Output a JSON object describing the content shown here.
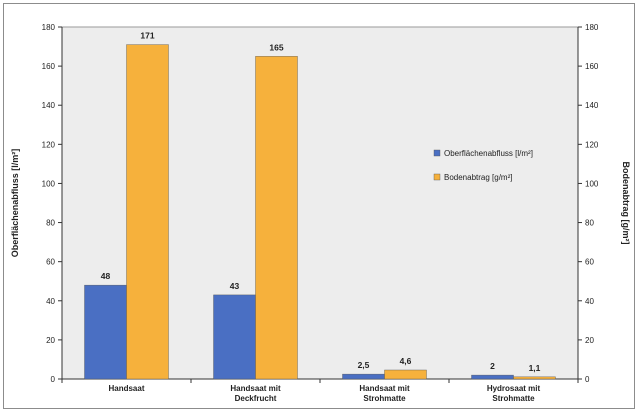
{
  "chart_data": {
    "type": "bar",
    "categories": [
      [
        "Handsaat"
      ],
      [
        "Handsaat mit",
        "Deckfrucht"
      ],
      [
        "Handsaat mit",
        "Strohmatte"
      ],
      [
        "Hydrosaat mit",
        "Strohmatte"
      ]
    ],
    "series": [
      {
        "name": "Oberflächenabfluss [l/m²]",
        "values": [
          48,
          43,
          2.5,
          2
        ],
        "labels": [
          "48",
          "43",
          "2,5",
          "2"
        ],
        "color": "#4a6fc3",
        "axis": "left"
      },
      {
        "name": "Bodenabtrag [g/m²]",
        "values": [
          171,
          165,
          4.6,
          1.1
        ],
        "labels": [
          "171",
          "165",
          "4,6",
          "1,1"
        ],
        "color": "#f6b13c",
        "axis": "right"
      }
    ],
    "ylabel": "Oberflächenabfluss [l/m²]",
    "ylabel_right": "Bodenabtrag [g/m²]",
    "ylim": [
      0,
      180
    ],
    "ylim_right": [
      0,
      180
    ],
    "yticks": [
      0,
      20,
      40,
      60,
      80,
      100,
      120,
      140,
      160,
      180
    ],
    "plot_background": "#ededed",
    "grid": false,
    "legend_position": "right"
  }
}
